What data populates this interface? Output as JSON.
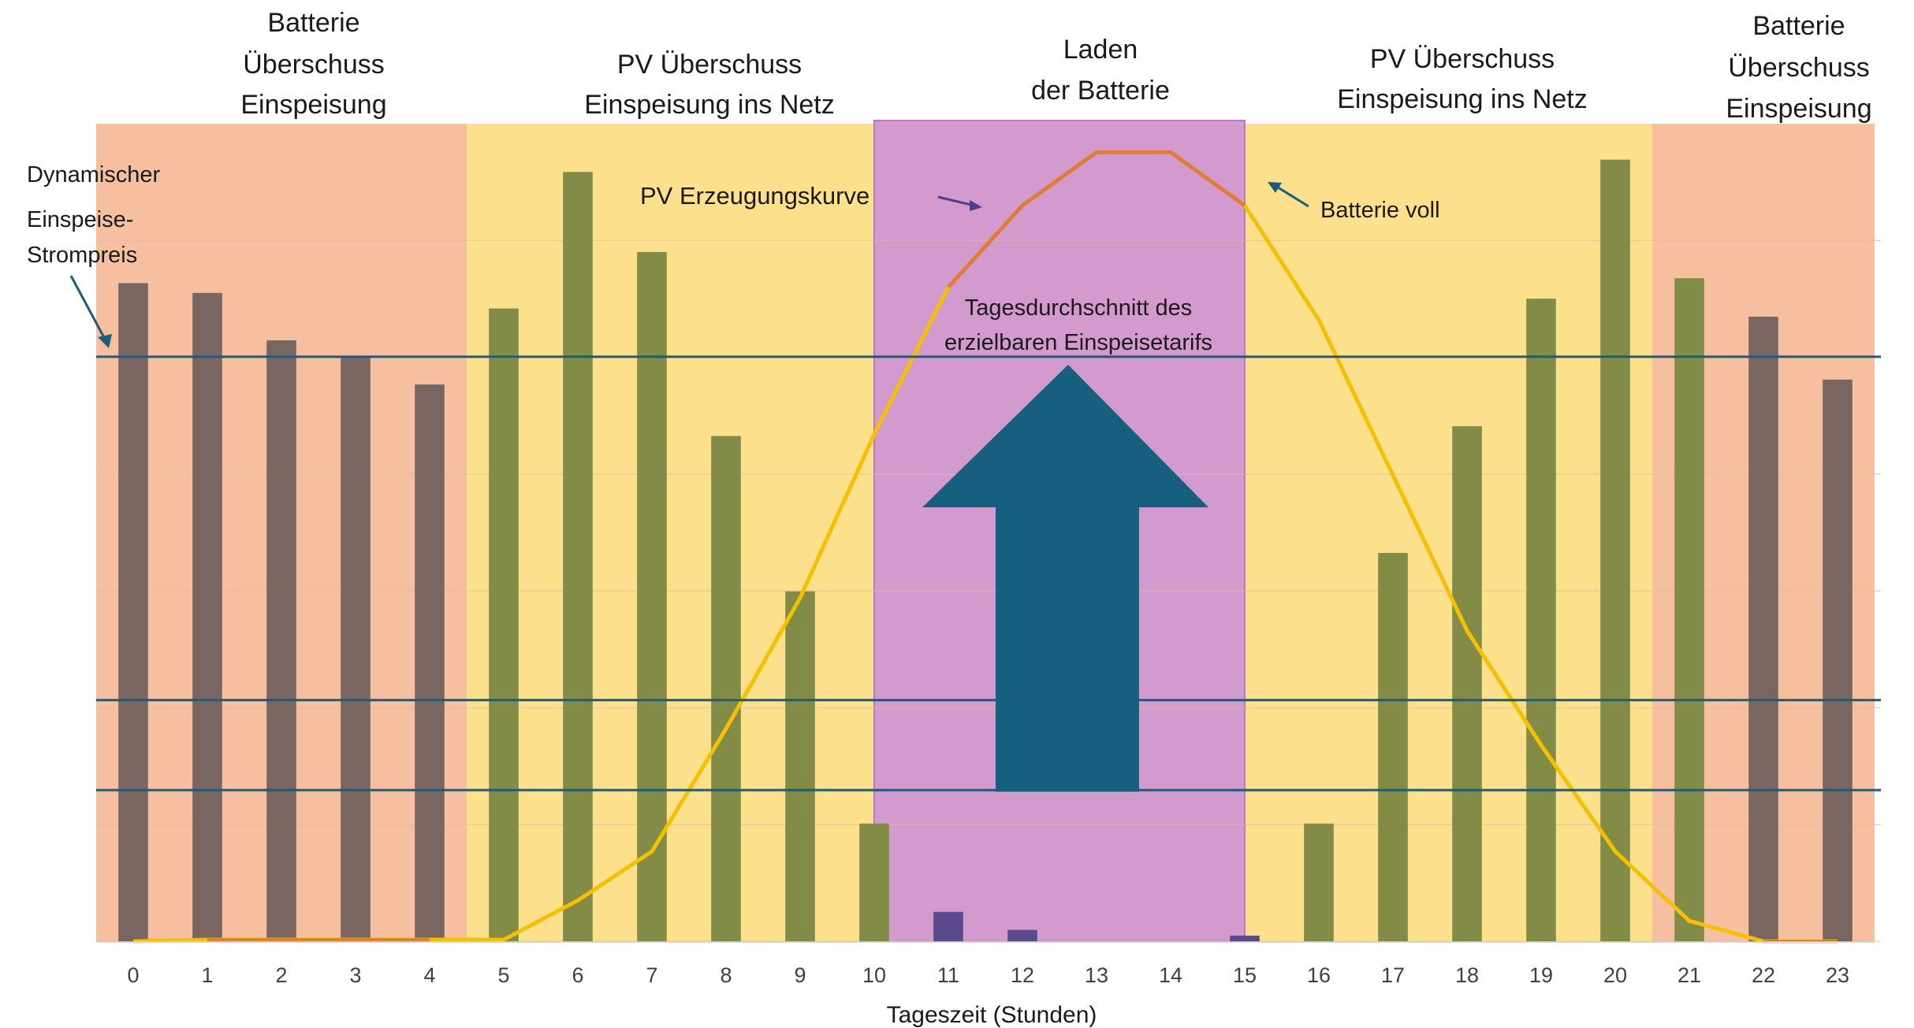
{
  "chart_data": {
    "type": "bar",
    "xlabel": "Tageszeit (Stunden)",
    "ylabel": "",
    "title": "",
    "ylim": [
      0,
      100
    ],
    "grid": true,
    "categories": [
      "0",
      "1",
      "2",
      "3",
      "4",
      "5",
      "6",
      "7",
      "8",
      "9",
      "10",
      "11",
      "12",
      "13",
      "14",
      "15",
      "16",
      "17",
      "18",
      "19",
      "20",
      "21",
      "22",
      "23"
    ],
    "values": [
      80.5,
      79.3,
      73.5,
      71.4,
      68.1,
      77.4,
      94.1,
      84.3,
      61.8,
      42.8,
      14.4,
      3.6,
      1.4,
      0,
      0,
      0.7,
      14.4,
      47.5,
      63.0,
      78.6,
      95.6,
      81.1,
      76.4,
      68.7
    ],
    "bar_colors": [
      "#7a6660",
      "#7a6660",
      "#7a6660",
      "#7a6660",
      "#7a6660",
      "#838c47",
      "#838c47",
      "#838c47",
      "#838c47",
      "#838c47",
      "#838c47",
      "#5a4a8c",
      "#5a4a8c",
      "#5a4a8c",
      "#5a4a8c",
      "#5a4a8c",
      "#838c47",
      "#838c47",
      "#838c47",
      "#838c47",
      "#838c47",
      "#838c47",
      "#7a6660",
      "#7a6660"
    ],
    "pv_curve": [
      0,
      0.2,
      0.2,
      0.2,
      0.2,
      0.2,
      5,
      11,
      26,
      42,
      62,
      80,
      90,
      96.5,
      96.5,
      90,
      76,
      57,
      38,
      24,
      11,
      2.5,
      0,
      0
    ],
    "reference_lines": [
      71.5,
      29.5,
      18.5
    ],
    "zones": [
      {
        "from": 0,
        "to": 5,
        "color": "#f5bfa0",
        "label_lines": [
          "Batterie",
          "Überschuss",
          "Einspeisung"
        ]
      },
      {
        "from": 5,
        "to": 10.5,
        "color": "#fde08b",
        "label_lines": [
          "PV Überschuss",
          "Einspeisung ins Netz"
        ]
      },
      {
        "from": 10.5,
        "to": 15.5,
        "color": "#d39bcd",
        "label_lines": [
          "Laden",
          "der Batterie"
        ]
      },
      {
        "from": 15.5,
        "to": 21,
        "color": "#fde08b",
        "label_lines": [
          "PV Überschuss",
          "Einspeisung ins Netz"
        ]
      },
      {
        "from": 21,
        "to": 24,
        "color": "#f5bfa0",
        "label_lines": [
          "Batterie",
          "Überschuss",
          "Einspeisung"
        ]
      }
    ],
    "annotations": {
      "price": [
        "Dynamischer",
        "Einspeise-",
        "Strompreis"
      ],
      "curve": "PV Erzeugungskurve",
      "battery_full": "Batterie voll",
      "average": [
        "Tagesdurchschnitt des",
        "erzielbaren Einspeisetarifs"
      ]
    },
    "colors": {
      "curve_yellow": "#f5c000",
      "curve_orange": "#e07b39",
      "reference_line": "#1a5c7a",
      "arrow": "#165f7f",
      "gridline": "#e0b9a0",
      "axis_line": "#d9d9d9"
    }
  }
}
